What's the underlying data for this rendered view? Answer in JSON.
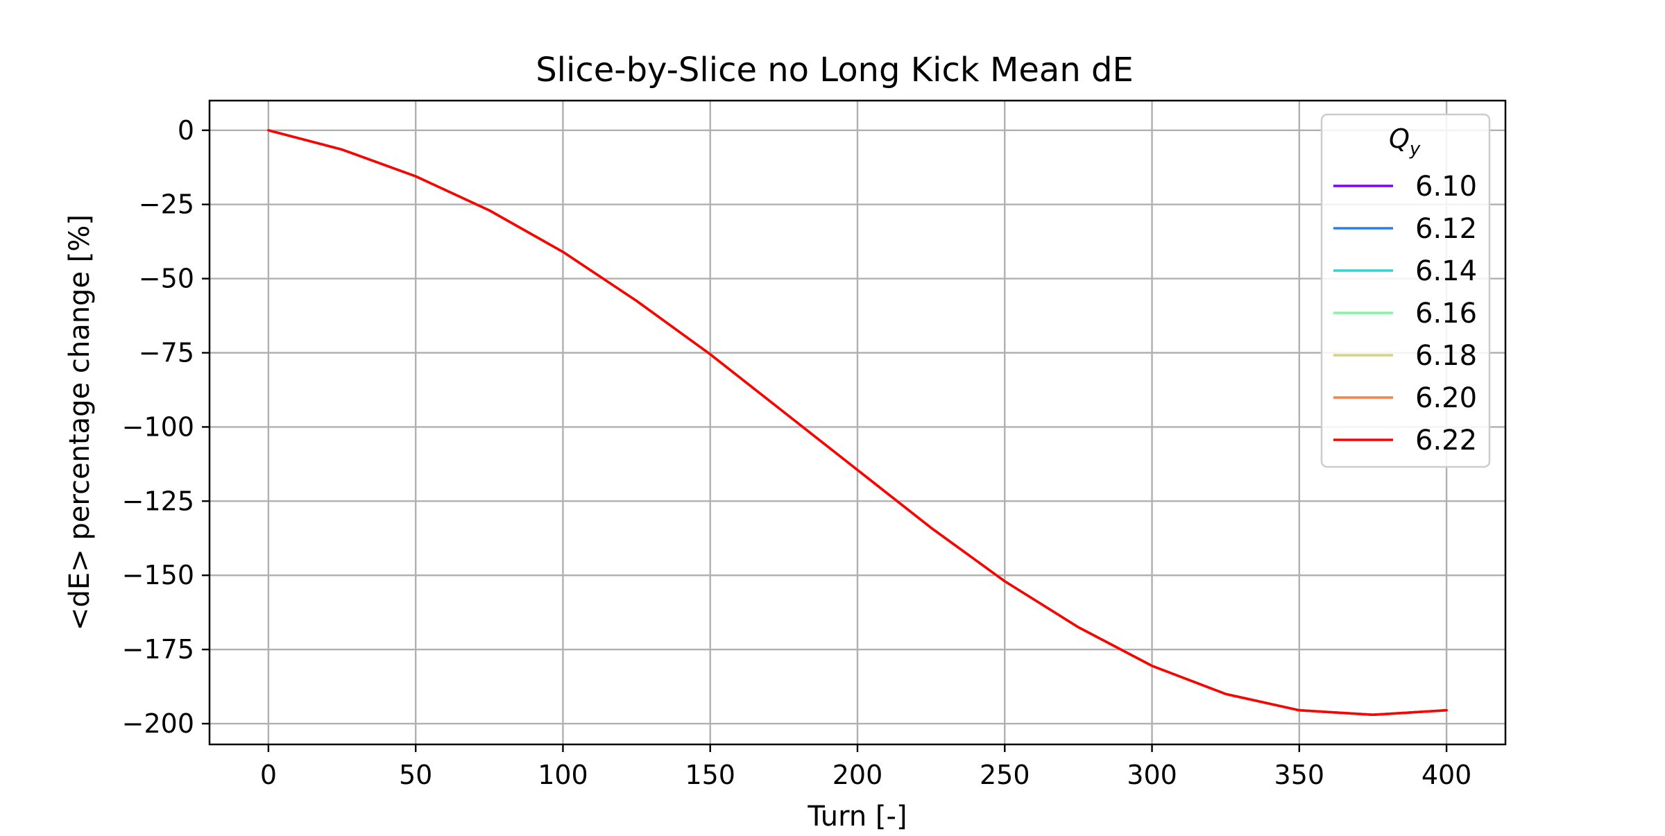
{
  "chart_data": {
    "type": "line",
    "title": "Slice-by-Slice no Long Kick Mean dE",
    "xlabel": "Turn [-]",
    "ylabel": "<dE> percentage change [%]",
    "xlim": [
      -20,
      420
    ],
    "ylim": [
      -207,
      10
    ],
    "xticks": [
      0,
      50,
      100,
      150,
      200,
      250,
      300,
      350,
      400
    ],
    "yticks": [
      0,
      -25,
      -50,
      -75,
      -100,
      -125,
      -150,
      -175,
      -200
    ],
    "xtick_labels": [
      "0",
      "50",
      "100",
      "150",
      "200",
      "250",
      "300",
      "350",
      "400"
    ],
    "ytick_labels": [
      "0",
      "−25",
      "−50",
      "−75",
      "−100",
      "−125",
      "−150",
      "−175",
      "−200"
    ],
    "grid": true,
    "legend": {
      "title": "Q",
      "title_subscript": "y",
      "position": "top-right"
    },
    "x": [
      0,
      25,
      50,
      75,
      100,
      125,
      150,
      175,
      200,
      225,
      250,
      275,
      300,
      325,
      350,
      375,
      400
    ],
    "series": [
      {
        "name": "6.10",
        "color": "#7f00ff",
        "values": [
          0,
          -6.5,
          -15.5,
          -27,
          -41,
          -57.5,
          -75.5,
          -95,
          -114.5,
          -134,
          -152,
          -167.5,
          -180.5,
          -190,
          -195.5,
          -197,
          -195.5
        ]
      },
      {
        "name": "6.12",
        "color": "#2a7fe8",
        "values": [
          0,
          -6.5,
          -15.5,
          -27,
          -41,
          -57.5,
          -75.5,
          -95,
          -114.5,
          -134,
          -152,
          -167.5,
          -180.5,
          -190,
          -195.5,
          -197,
          -195.5
        ]
      },
      {
        "name": "6.14",
        "color": "#2ad6d6",
        "values": [
          0,
          -6.5,
          -15.5,
          -27,
          -41,
          -57.5,
          -75.5,
          -95,
          -114.5,
          -134,
          -152,
          -167.5,
          -180.5,
          -190,
          -195.5,
          -197,
          -195.5
        ]
      },
      {
        "name": "6.16",
        "color": "#80f7a0",
        "values": [
          0,
          -6.5,
          -15.5,
          -27,
          -41,
          -57.5,
          -75.5,
          -95,
          -114.5,
          -134,
          -152,
          -167.5,
          -180.5,
          -190,
          -195.5,
          -197,
          -195.5
        ]
      },
      {
        "name": "6.18",
        "color": "#d4d47f",
        "values": [
          0,
          -6.5,
          -15.5,
          -27,
          -41,
          -57.5,
          -75.5,
          -95,
          -114.5,
          -134,
          -152,
          -167.5,
          -180.5,
          -190,
          -195.5,
          -197,
          -195.5
        ]
      },
      {
        "name": "6.20",
        "color": "#ff7f40",
        "values": [
          0,
          -6.5,
          -15.5,
          -27,
          -41,
          -57.5,
          -75.5,
          -95,
          -114.5,
          -134,
          -152,
          -167.5,
          -180.5,
          -190,
          -195.5,
          -197,
          -195.5
        ]
      },
      {
        "name": "6.22",
        "color": "#ff0000",
        "values": [
          0,
          -6.5,
          -15.5,
          -27,
          -41,
          -57.5,
          -75.5,
          -95,
          -114.5,
          -134,
          -152,
          -167.5,
          -180.5,
          -190,
          -195.5,
          -197,
          -195.5
        ]
      }
    ]
  }
}
